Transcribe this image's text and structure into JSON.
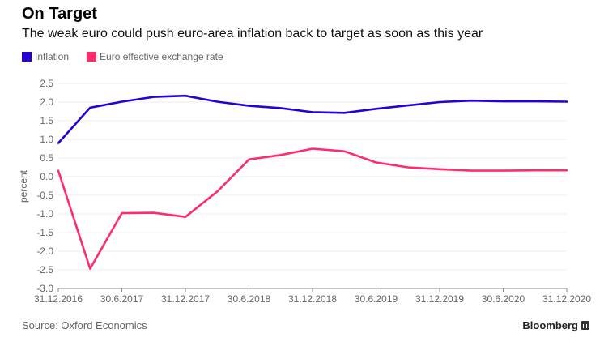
{
  "header": {
    "title": "On Target",
    "subtitle": "The weak euro could push euro-area inflation back to target as soon as this year"
  },
  "footer": {
    "source": "Source: Oxford Economics",
    "brand": "Bloomberg"
  },
  "chart_data": {
    "type": "line",
    "title": "On Target",
    "subtitle": "The weak euro could push euro-area inflation back to target as soon as this year",
    "xlabel": "",
    "ylabel": "percent",
    "ylim": [
      -3.0,
      2.5
    ],
    "yticks": [
      "2.5",
      "2.0",
      "1.5",
      "1.0",
      "0.5",
      "0.0",
      "-0.5",
      "-1.0",
      "-1.5",
      "-2.0",
      "-2.5",
      "-3.0"
    ],
    "ytick_values": [
      2.5,
      2.0,
      1.5,
      1.0,
      0.5,
      0.0,
      -0.5,
      -1.0,
      -1.5,
      -2.0,
      -2.5,
      -3.0
    ],
    "xticks": [
      "31.12.2016",
      "30.6.2017",
      "31.12.2017",
      "30.6.2018",
      "31.12.2018",
      "30.6.2019",
      "31.12.2019",
      "30.6.2020",
      "31.12.2020"
    ],
    "x": [
      "Q4 2016",
      "Q1 2017",
      "Q2 2017",
      "Q3 2017",
      "Q4 2017",
      "Q1 2018",
      "Q2 2018",
      "Q3 2018",
      "Q4 2018",
      "Q1 2019",
      "Q2 2019",
      "Q3 2019",
      "Q4 2019",
      "Q1 2020",
      "Q2 2020",
      "Q3 2020",
      "Q4 2020"
    ],
    "grid": true,
    "legend_position": "top-left",
    "series": [
      {
        "name": "Inflation",
        "color": "#2800d7",
        "values": [
          0.9,
          1.85,
          2.01,
          2.14,
          2.17,
          2.01,
          1.9,
          1.84,
          1.73,
          1.71,
          1.82,
          1.91,
          2.0,
          2.04,
          2.02,
          2.02,
          2.01
        ]
      },
      {
        "name": "Euro effective exchange rate",
        "color": "#ff2c6c",
        "values": [
          0.16,
          -2.47,
          -0.98,
          -0.97,
          -1.08,
          -0.4,
          0.46,
          0.58,
          0.75,
          0.68,
          0.38,
          0.25,
          0.2,
          0.16,
          0.16,
          0.17,
          0.17
        ]
      }
    ]
  }
}
